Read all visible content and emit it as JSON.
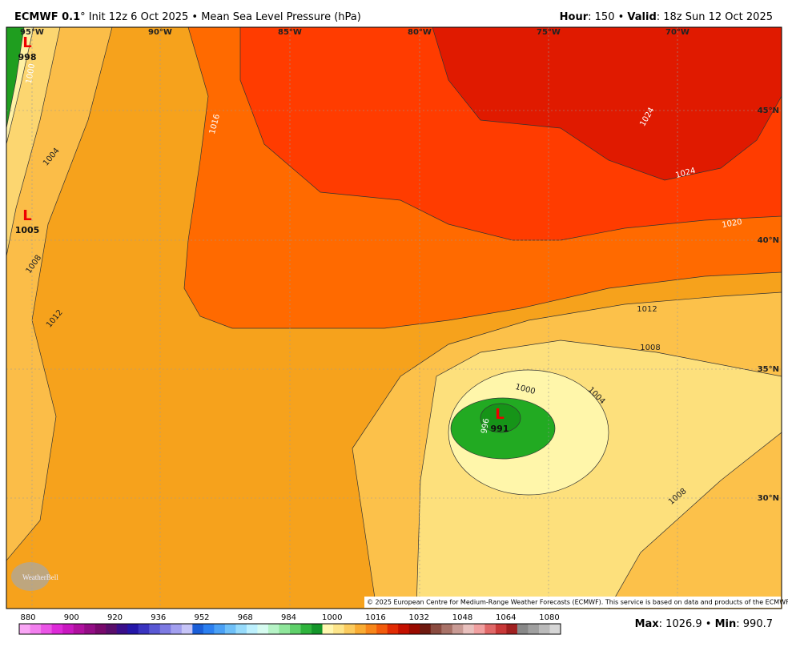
{
  "header": {
    "left": [
      {
        "text": "ECMWF 0.1",
        "bold": true
      },
      {
        "text": "° Init 12z 6 Oct 2025 • Mean Sea Level Pressure (hPa)",
        "bold": false
      }
    ],
    "right": [
      {
        "text": "Hour",
        "bold": true
      },
      {
        "text": ": 150 • ",
        "bold": false
      },
      {
        "text": "Valid",
        "bold": true
      },
      {
        "text": ": 18z Sun 12 Oct 2025",
        "bold": false
      }
    ]
  },
  "map": {
    "longitudes": [
      "95°W",
      "90°W",
      "85°W",
      "80°W",
      "75°W",
      "70°W"
    ],
    "latitudes": [
      "45°N",
      "40°N",
      "35°N",
      "30°N"
    ],
    "contour_labels": [
      "1000",
      "1004",
      "1008",
      "1012",
      "1016",
      "1012",
      "1008",
      "1004",
      "1000",
      "996",
      "1008",
      "1020",
      "1024",
      "1024"
    ],
    "lows": [
      {
        "symbol": "L",
        "value": "998"
      },
      {
        "symbol": "L",
        "value": "1005"
      },
      {
        "symbol": "L",
        "value": "991"
      }
    ],
    "logo": "WeatherBell",
    "credit": "© 2025 European Centre for Medium-Range Weather Forecasts (ECMWF). This service is based on data and products of the ECMWF."
  },
  "colorbar": {
    "labels": [
      "880",
      "900",
      "920",
      "936",
      "952",
      "968",
      "984",
      "1000",
      "1016",
      "1032",
      "1048",
      "1064",
      "1080"
    ]
  },
  "footer": [
    {
      "text": "Max",
      "bold": true
    },
    {
      "text": ": 1026.9 • ",
      "bold": false
    },
    {
      "text": "Min",
      "bold": true
    },
    {
      "text": ": 990.7",
      "bold": false
    }
  ]
}
